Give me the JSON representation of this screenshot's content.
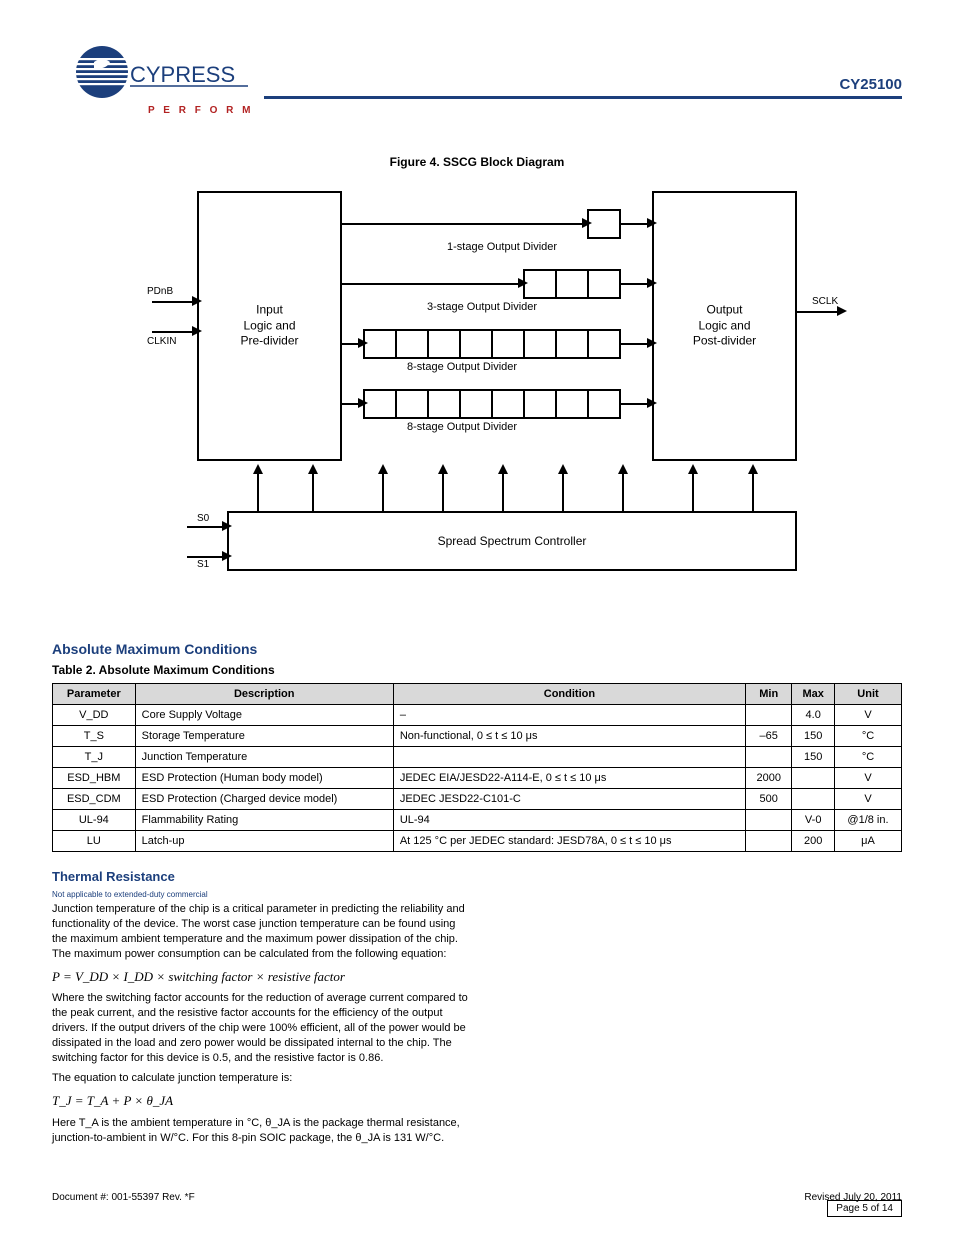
{
  "header": {
    "part_number": "CY25100",
    "brand_top": "CYPRESS",
    "brand_bottom": "P E R F O R M"
  },
  "figure": {
    "caption": "Figure 4. SSCG Block Diagram",
    "left_block": "Input\nLogic and\nPre-divider",
    "right_block": "Output\nLogic and\nPost-divider",
    "controller": "Spread Spectrum Controller",
    "chains": {
      "one": {
        "label": "1-stage Output Divider"
      },
      "three": {
        "label": "3-stage Output Divider"
      },
      "eightA": {
        "label": "8-stage Output Divider"
      },
      "eightB": {
        "label": "8-stage Output Divider"
      }
    },
    "signals": {
      "pdnb": "PDnB",
      "clkin": "CLKIN",
      "s0": "S0",
      "s1": "S1",
      "sclk": "SCLK"
    }
  },
  "section": {
    "abs_max": "Absolute Maximum Conditions",
    "table_title": "Table 2. Absolute Maximum Conditions",
    "columns": [
      "Parameter",
      "Description",
      "Condition",
      "Min",
      "Max",
      "Unit"
    ],
    "rows": [
      [
        "V_DD",
        "Core Supply Voltage",
        "–",
        "",
        "4.0",
        "V"
      ],
      [
        "T_S",
        "Storage Temperature",
        "Non-functional, 0 ≤ t ≤ 10 μs",
        "–65",
        "150",
        "°C"
      ],
      [
        "T_J",
        "Junction Temperature",
        "",
        "",
        "150",
        "°C"
      ],
      [
        "ESD_HBM",
        "ESD Protection (Human body model)",
        "JEDEC EIA/JESD22-A114-E, 0 ≤ t ≤ 10 μs",
        "2000",
        "",
        "V"
      ],
      [
        "ESD_CDM",
        "ESD Protection (Charged device model)",
        "JEDEC JESD22-C101-C",
        "500",
        "",
        "V"
      ],
      [
        "UL-94",
        "Flammability Rating",
        "UL-94",
        "",
        "V-0",
        "@1/8 in."
      ],
      [
        "LU",
        "Latch-up",
        "At 125 °C per JEDEC standard: JESD78A, 0 ≤ t ≤ 10 μs",
        "",
        "200",
        "μA"
      ]
    ]
  },
  "thermal": {
    "heading": "Thermal Resistance",
    "p1": "Junction temperature of the chip is a critical parameter in predicting the reliability and functionality of the device. The worst case junction temperature can be found using the maximum ambient temperature and the maximum power dissipation of the chip. The maximum power consumption can be calculated from the following equation:",
    "eqn1": "P = V_DD × I_DD × switching factor × resistive factor",
    "p2": "Where the switching factor accounts for the reduction of average current compared to the peak current, and the resistive factor accounts for the efficiency of the output drivers. If the output drivers of the chip were 100% efficient, all of the power would be dissipated in the load and zero power would be dissipated internal to the chip. The switching factor for this device is 0.5, and the resistive factor is 0.86.",
    "p3": "The equation to calculate junction temperature is:",
    "eqn2": "T_J = T_A + P × θ_JA",
    "p4": "Here T_A is the ambient temperature in °C, θ_JA is the package thermal resistance, junction-to-ambient in W/°C. For this 8-pin SOIC package, the θ_JA is 131 W/°C."
  },
  "footer": {
    "doc": "Document #: 001-55397 Rev. *F",
    "revised": "Revised July 20, 2011",
    "page": "Page 5 of 14"
  }
}
